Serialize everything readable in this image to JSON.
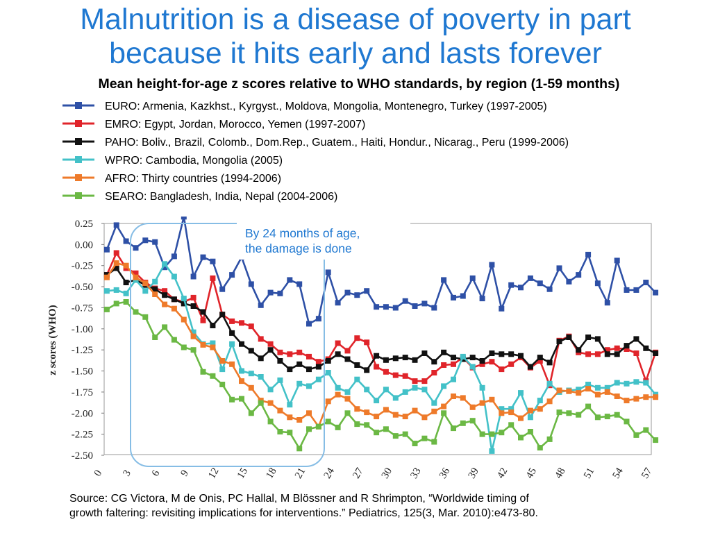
{
  "title_line1": "Malnutrition is a disease of poverty in part",
  "title_line2": "because it hits early and lasts forever",
  "subtitle": "Mean height-for-age z scores relative to WHO standards, by region (1-59 months)",
  "callout_line1": "By 24 months of age,",
  "callout_line2": "the damage is done",
  "source_line1": "Source: CG Victora, M de Onis, PC Hallal, M Blössner and R Shrimpton, “Worldwide timing of",
  "source_line2": "growth faltering: revisiting implications for interventions.” Pediatrics, 125(3, Mar. 2010):e473-80.",
  "chart_data": {
    "type": "line",
    "ylabel": "z scores (WHO)",
    "xlabel": "",
    "xlim": [
      0,
      59
    ],
    "ylim": [
      -2.5,
      0.25
    ],
    "yticks": [
      "0.25",
      "0.00",
      "-0.25",
      "-0.50",
      "-0.75",
      "-1.00",
      "-1.25",
      "-1.50",
      "-1.75",
      "-2.00",
      "-2.25",
      "-2.50"
    ],
    "xticks": [
      "0",
      "3",
      "6",
      "9",
      "12",
      "15",
      "18",
      "21",
      "24",
      "27",
      "30",
      "33",
      "36",
      "39",
      "42",
      "45",
      "48",
      "51",
      "54",
      "57"
    ],
    "legend_position": "top",
    "series": [
      {
        "name": "EURO: Armenia, Kazkhst., Kyrgyst., Moldova, Mongolia, Montenegro, Turkey (1997-2005)",
        "color": "#2e50a6",
        "values": [
          -0.06,
          0.23,
          0.04,
          -0.04,
          0.05,
          0.03,
          -0.27,
          -0.14,
          0.33,
          -0.38,
          -0.15,
          -0.2,
          -0.53,
          -0.36,
          -0.15,
          -0.47,
          -0.72,
          -0.57,
          -0.58,
          -0.42,
          -0.47,
          -0.94,
          -0.88,
          -0.33,
          -0.69,
          -0.57,
          -0.6,
          -0.55,
          -0.74,
          -0.74,
          -0.75,
          -0.67,
          -0.73,
          -0.7,
          -0.75,
          -0.42,
          -0.63,
          -0.61,
          -0.4,
          -0.64,
          -0.24,
          -0.76,
          -0.48,
          -0.51,
          -0.4,
          -0.46,
          -0.53,
          -0.28,
          -0.44,
          -0.36,
          -0.12,
          -0.46,
          -0.69,
          -0.19,
          -0.54,
          -0.54,
          -0.45,
          -0.57
        ]
      },
      {
        "name": "EMRO:  Egypt, Jordan, Morocco, Yemen (1997-2007)",
        "color": "#e0242a",
        "values": [
          -0.36,
          -0.1,
          -0.28,
          -0.34,
          -0.45,
          -0.52,
          -0.55,
          -0.65,
          -0.68,
          -0.63,
          -0.9,
          -0.4,
          -0.83,
          -0.91,
          -0.93,
          -0.97,
          -1.12,
          -1.18,
          -1.28,
          -1.3,
          -1.28,
          -1.33,
          -1.39,
          -1.36,
          -1.17,
          -1.26,
          -1.11,
          -1.16,
          -1.45,
          -1.51,
          -1.55,
          -1.56,
          -1.62,
          -1.62,
          -1.52,
          -1.43,
          -1.42,
          -1.34,
          -1.46,
          -1.42,
          -1.39,
          -1.48,
          -1.42,
          -1.34,
          -1.46,
          -1.38,
          -1.67,
          -1.14,
          -1.09,
          -1.28,
          -1.3,
          -1.3,
          -1.25,
          -1.23,
          -1.24,
          -1.29,
          -1.62,
          -1.28
        ]
      },
      {
        "name": "PAHO: Boliv., Brazil, Colomb., Dom.Rep., Guatem., Haiti, Hondur., Nicarag., Peru (1999-2006)",
        "color": "#111111",
        "values": [
          -0.36,
          -0.28,
          -0.45,
          -0.42,
          -0.48,
          -0.53,
          -0.6,
          -0.65,
          -0.7,
          -0.73,
          -0.8,
          -0.96,
          -0.83,
          -1.05,
          -1.18,
          -1.26,
          -1.35,
          -1.25,
          -1.38,
          -1.48,
          -1.42,
          -1.48,
          -1.45,
          -1.38,
          -1.3,
          -1.36,
          -1.43,
          -1.49,
          -1.32,
          -1.37,
          -1.35,
          -1.34,
          -1.37,
          -1.29,
          -1.39,
          -1.28,
          -1.34,
          -1.36,
          -1.34,
          -1.38,
          -1.29,
          -1.3,
          -1.3,
          -1.32,
          -1.45,
          -1.34,
          -1.4,
          -1.15,
          -1.1,
          -1.25,
          -1.1,
          -1.12,
          -1.3,
          -1.3,
          -1.2,
          -1.12,
          -1.23,
          -1.29
        ]
      },
      {
        "name": "WPRO: Cambodia, Mongolia (2005)",
        "color": "#43c1c8",
        "values": [
          -0.55,
          -0.54,
          -0.58,
          -0.42,
          -0.55,
          -0.44,
          -0.23,
          -0.38,
          -0.64,
          -1.04,
          -1.18,
          -1.17,
          -1.48,
          -1.18,
          -1.5,
          -1.53,
          -1.57,
          -1.72,
          -1.61,
          -1.9,
          -1.65,
          -1.68,
          -1.6,
          -1.52,
          -1.7,
          -1.75,
          -1.6,
          -1.72,
          -1.85,
          -1.72,
          -1.82,
          -1.75,
          -1.7,
          -1.72,
          -1.88,
          -1.68,
          -1.6,
          -1.33,
          -1.45,
          -1.7,
          -2.45,
          -1.95,
          -1.95,
          -1.76,
          -2.05,
          -1.85,
          -1.65,
          -1.75,
          -1.73,
          -1.72,
          -1.66,
          -1.7,
          -1.7,
          -1.64,
          -1.65,
          -1.63,
          -1.64,
          -1.78
        ]
      },
      {
        "name": "AFRO:  Thirty countries (1994-2006)",
        "color": "#ee7a2a",
        "values": [
          -0.39,
          -0.22,
          -0.25,
          -0.39,
          -0.46,
          -0.59,
          -0.71,
          -0.76,
          -0.89,
          -1.09,
          -1.19,
          -1.22,
          -1.38,
          -1.42,
          -1.62,
          -1.7,
          -1.85,
          -1.88,
          -1.97,
          -2.05,
          -2.08,
          -2.0,
          -2.16,
          -1.86,
          -1.78,
          -1.83,
          -1.95,
          -1.99,
          -2.04,
          -1.96,
          -2.02,
          -2.04,
          -1.97,
          -2.05,
          -1.98,
          -1.92,
          -1.8,
          -1.82,
          -1.93,
          -1.88,
          -1.84,
          -2.0,
          -1.99,
          -2.06,
          -1.97,
          -1.95,
          -1.86,
          -1.73,
          -1.74,
          -1.76,
          -1.71,
          -1.78,
          -1.75,
          -1.8,
          -1.85,
          -1.83,
          -1.81,
          -1.81
        ]
      },
      {
        "name": "SEARO: Bangladesh, India, Nepal (2004-2006)",
        "color": "#6bb844",
        "values": [
          -0.77,
          -0.7,
          -0.68,
          -0.8,
          -0.86,
          -1.1,
          -0.98,
          -1.13,
          -1.22,
          -1.25,
          -1.51,
          -1.56,
          -1.66,
          -1.84,
          -1.83,
          -2.0,
          -1.88,
          -2.1,
          -2.22,
          -2.23,
          -2.42,
          -2.19,
          -2.16,
          -2.1,
          -2.17,
          -2.0,
          -2.13,
          -2.14,
          -2.23,
          -2.19,
          -2.27,
          -2.25,
          -2.36,
          -2.3,
          -2.34,
          -2.0,
          -2.18,
          -2.12,
          -2.09,
          -2.25,
          -2.25,
          -2.23,
          -2.14,
          -2.29,
          -2.22,
          -2.41,
          -2.31,
          -1.99,
          -2.0,
          -2.02,
          -1.92,
          -2.05,
          -2.04,
          -2.02,
          -2.1,
          -2.26,
          -2.2,
          -2.32
        ]
      }
    ]
  }
}
